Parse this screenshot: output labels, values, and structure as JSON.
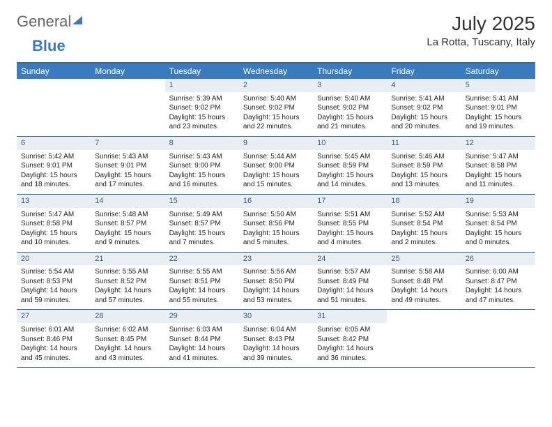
{
  "brand": {
    "part1": "General",
    "part2": "Blue"
  },
  "title": "July 2025",
  "location": "La Rotta, Tuscany, Italy",
  "colors": {
    "header_bg": "#3a7bbf",
    "header_text": "#ffffff",
    "daynum_bg": "#e8eef3",
    "daynum_text": "#3a5a7a",
    "rule": "#2e6da4",
    "body_text": "#222222"
  },
  "dow": [
    "Sunday",
    "Monday",
    "Tuesday",
    "Wednesday",
    "Thursday",
    "Friday",
    "Saturday"
  ],
  "weeks": [
    [
      {
        "blank": true
      },
      {
        "blank": true
      },
      {
        "d": "1",
        "sr": "Sunrise: 5:39 AM",
        "ss": "Sunset: 9:02 PM",
        "dl": "Daylight: 15 hours and 23 minutes."
      },
      {
        "d": "2",
        "sr": "Sunrise: 5:40 AM",
        "ss": "Sunset: 9:02 PM",
        "dl": "Daylight: 15 hours and 22 minutes."
      },
      {
        "d": "3",
        "sr": "Sunrise: 5:40 AM",
        "ss": "Sunset: 9:02 PM",
        "dl": "Daylight: 15 hours and 21 minutes."
      },
      {
        "d": "4",
        "sr": "Sunrise: 5:41 AM",
        "ss": "Sunset: 9:02 PM",
        "dl": "Daylight: 15 hours and 20 minutes."
      },
      {
        "d": "5",
        "sr": "Sunrise: 5:41 AM",
        "ss": "Sunset: 9:01 PM",
        "dl": "Daylight: 15 hours and 19 minutes."
      }
    ],
    [
      {
        "d": "6",
        "sr": "Sunrise: 5:42 AM",
        "ss": "Sunset: 9:01 PM",
        "dl": "Daylight: 15 hours and 18 minutes."
      },
      {
        "d": "7",
        "sr": "Sunrise: 5:43 AM",
        "ss": "Sunset: 9:01 PM",
        "dl": "Daylight: 15 hours and 17 minutes."
      },
      {
        "d": "8",
        "sr": "Sunrise: 5:43 AM",
        "ss": "Sunset: 9:00 PM",
        "dl": "Daylight: 15 hours and 16 minutes."
      },
      {
        "d": "9",
        "sr": "Sunrise: 5:44 AM",
        "ss": "Sunset: 9:00 PM",
        "dl": "Daylight: 15 hours and 15 minutes."
      },
      {
        "d": "10",
        "sr": "Sunrise: 5:45 AM",
        "ss": "Sunset: 8:59 PM",
        "dl": "Daylight: 15 hours and 14 minutes."
      },
      {
        "d": "11",
        "sr": "Sunrise: 5:46 AM",
        "ss": "Sunset: 8:59 PM",
        "dl": "Daylight: 15 hours and 13 minutes."
      },
      {
        "d": "12",
        "sr": "Sunrise: 5:47 AM",
        "ss": "Sunset: 8:58 PM",
        "dl": "Daylight: 15 hours and 11 minutes."
      }
    ],
    [
      {
        "d": "13",
        "sr": "Sunrise: 5:47 AM",
        "ss": "Sunset: 8:58 PM",
        "dl": "Daylight: 15 hours and 10 minutes."
      },
      {
        "d": "14",
        "sr": "Sunrise: 5:48 AM",
        "ss": "Sunset: 8:57 PM",
        "dl": "Daylight: 15 hours and 9 minutes."
      },
      {
        "d": "15",
        "sr": "Sunrise: 5:49 AM",
        "ss": "Sunset: 8:57 PM",
        "dl": "Daylight: 15 hours and 7 minutes."
      },
      {
        "d": "16",
        "sr": "Sunrise: 5:50 AM",
        "ss": "Sunset: 8:56 PM",
        "dl": "Daylight: 15 hours and 5 minutes."
      },
      {
        "d": "17",
        "sr": "Sunrise: 5:51 AM",
        "ss": "Sunset: 8:55 PM",
        "dl": "Daylight: 15 hours and 4 minutes."
      },
      {
        "d": "18",
        "sr": "Sunrise: 5:52 AM",
        "ss": "Sunset: 8:54 PM",
        "dl": "Daylight: 15 hours and 2 minutes."
      },
      {
        "d": "19",
        "sr": "Sunrise: 5:53 AM",
        "ss": "Sunset: 8:54 PM",
        "dl": "Daylight: 15 hours and 0 minutes."
      }
    ],
    [
      {
        "d": "20",
        "sr": "Sunrise: 5:54 AM",
        "ss": "Sunset: 8:53 PM",
        "dl": "Daylight: 14 hours and 59 minutes."
      },
      {
        "d": "21",
        "sr": "Sunrise: 5:55 AM",
        "ss": "Sunset: 8:52 PM",
        "dl": "Daylight: 14 hours and 57 minutes."
      },
      {
        "d": "22",
        "sr": "Sunrise: 5:55 AM",
        "ss": "Sunset: 8:51 PM",
        "dl": "Daylight: 14 hours and 55 minutes."
      },
      {
        "d": "23",
        "sr": "Sunrise: 5:56 AM",
        "ss": "Sunset: 8:50 PM",
        "dl": "Daylight: 14 hours and 53 minutes."
      },
      {
        "d": "24",
        "sr": "Sunrise: 5:57 AM",
        "ss": "Sunset: 8:49 PM",
        "dl": "Daylight: 14 hours and 51 minutes."
      },
      {
        "d": "25",
        "sr": "Sunrise: 5:58 AM",
        "ss": "Sunset: 8:48 PM",
        "dl": "Daylight: 14 hours and 49 minutes."
      },
      {
        "d": "26",
        "sr": "Sunrise: 6:00 AM",
        "ss": "Sunset: 8:47 PM",
        "dl": "Daylight: 14 hours and 47 minutes."
      }
    ],
    [
      {
        "d": "27",
        "sr": "Sunrise: 6:01 AM",
        "ss": "Sunset: 8:46 PM",
        "dl": "Daylight: 14 hours and 45 minutes."
      },
      {
        "d": "28",
        "sr": "Sunrise: 6:02 AM",
        "ss": "Sunset: 8:45 PM",
        "dl": "Daylight: 14 hours and 43 minutes."
      },
      {
        "d": "29",
        "sr": "Sunrise: 6:03 AM",
        "ss": "Sunset: 8:44 PM",
        "dl": "Daylight: 14 hours and 41 minutes."
      },
      {
        "d": "30",
        "sr": "Sunrise: 6:04 AM",
        "ss": "Sunset: 8:43 PM",
        "dl": "Daylight: 14 hours and 39 minutes."
      },
      {
        "d": "31",
        "sr": "Sunrise: 6:05 AM",
        "ss": "Sunset: 8:42 PM",
        "dl": "Daylight: 14 hours and 36 minutes."
      },
      {
        "blank": true
      },
      {
        "blank": true
      }
    ]
  ]
}
